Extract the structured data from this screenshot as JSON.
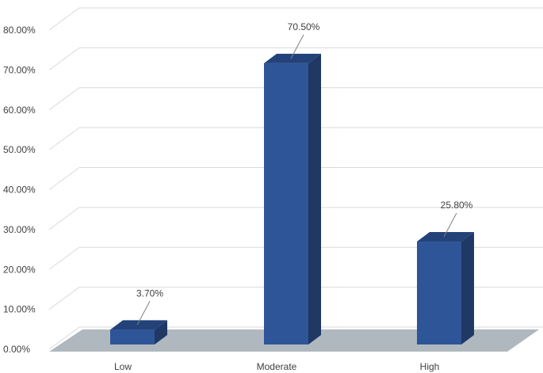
{
  "chart_data": {
    "type": "bar",
    "title": "",
    "xlabel": "",
    "ylabel": "",
    "categories": [
      "Low",
      "Moderate",
      "High"
    ],
    "values": [
      3.7,
      70.5,
      25.8
    ],
    "value_labels": [
      "3.70%",
      "70.50%",
      "25.80%"
    ],
    "ylim": [
      0,
      80
    ],
    "y_ticks": [
      0,
      10,
      20,
      30,
      40,
      50,
      60,
      70,
      80
    ],
    "y_tick_labels": [
      "0.00%",
      "10.00%",
      "20.00%",
      "30.00%",
      "40.00%",
      "50.00%",
      "60.00%",
      "70.00%",
      "80.00%"
    ],
    "grid": true,
    "style": "3d-column",
    "colors": {
      "bar_front": "#2e5597",
      "bar_side": "#1f3864",
      "bar_top": "#23427a",
      "floor": "#b0b8bf",
      "gridline": "#d9d9d9",
      "text": "#404040"
    }
  }
}
